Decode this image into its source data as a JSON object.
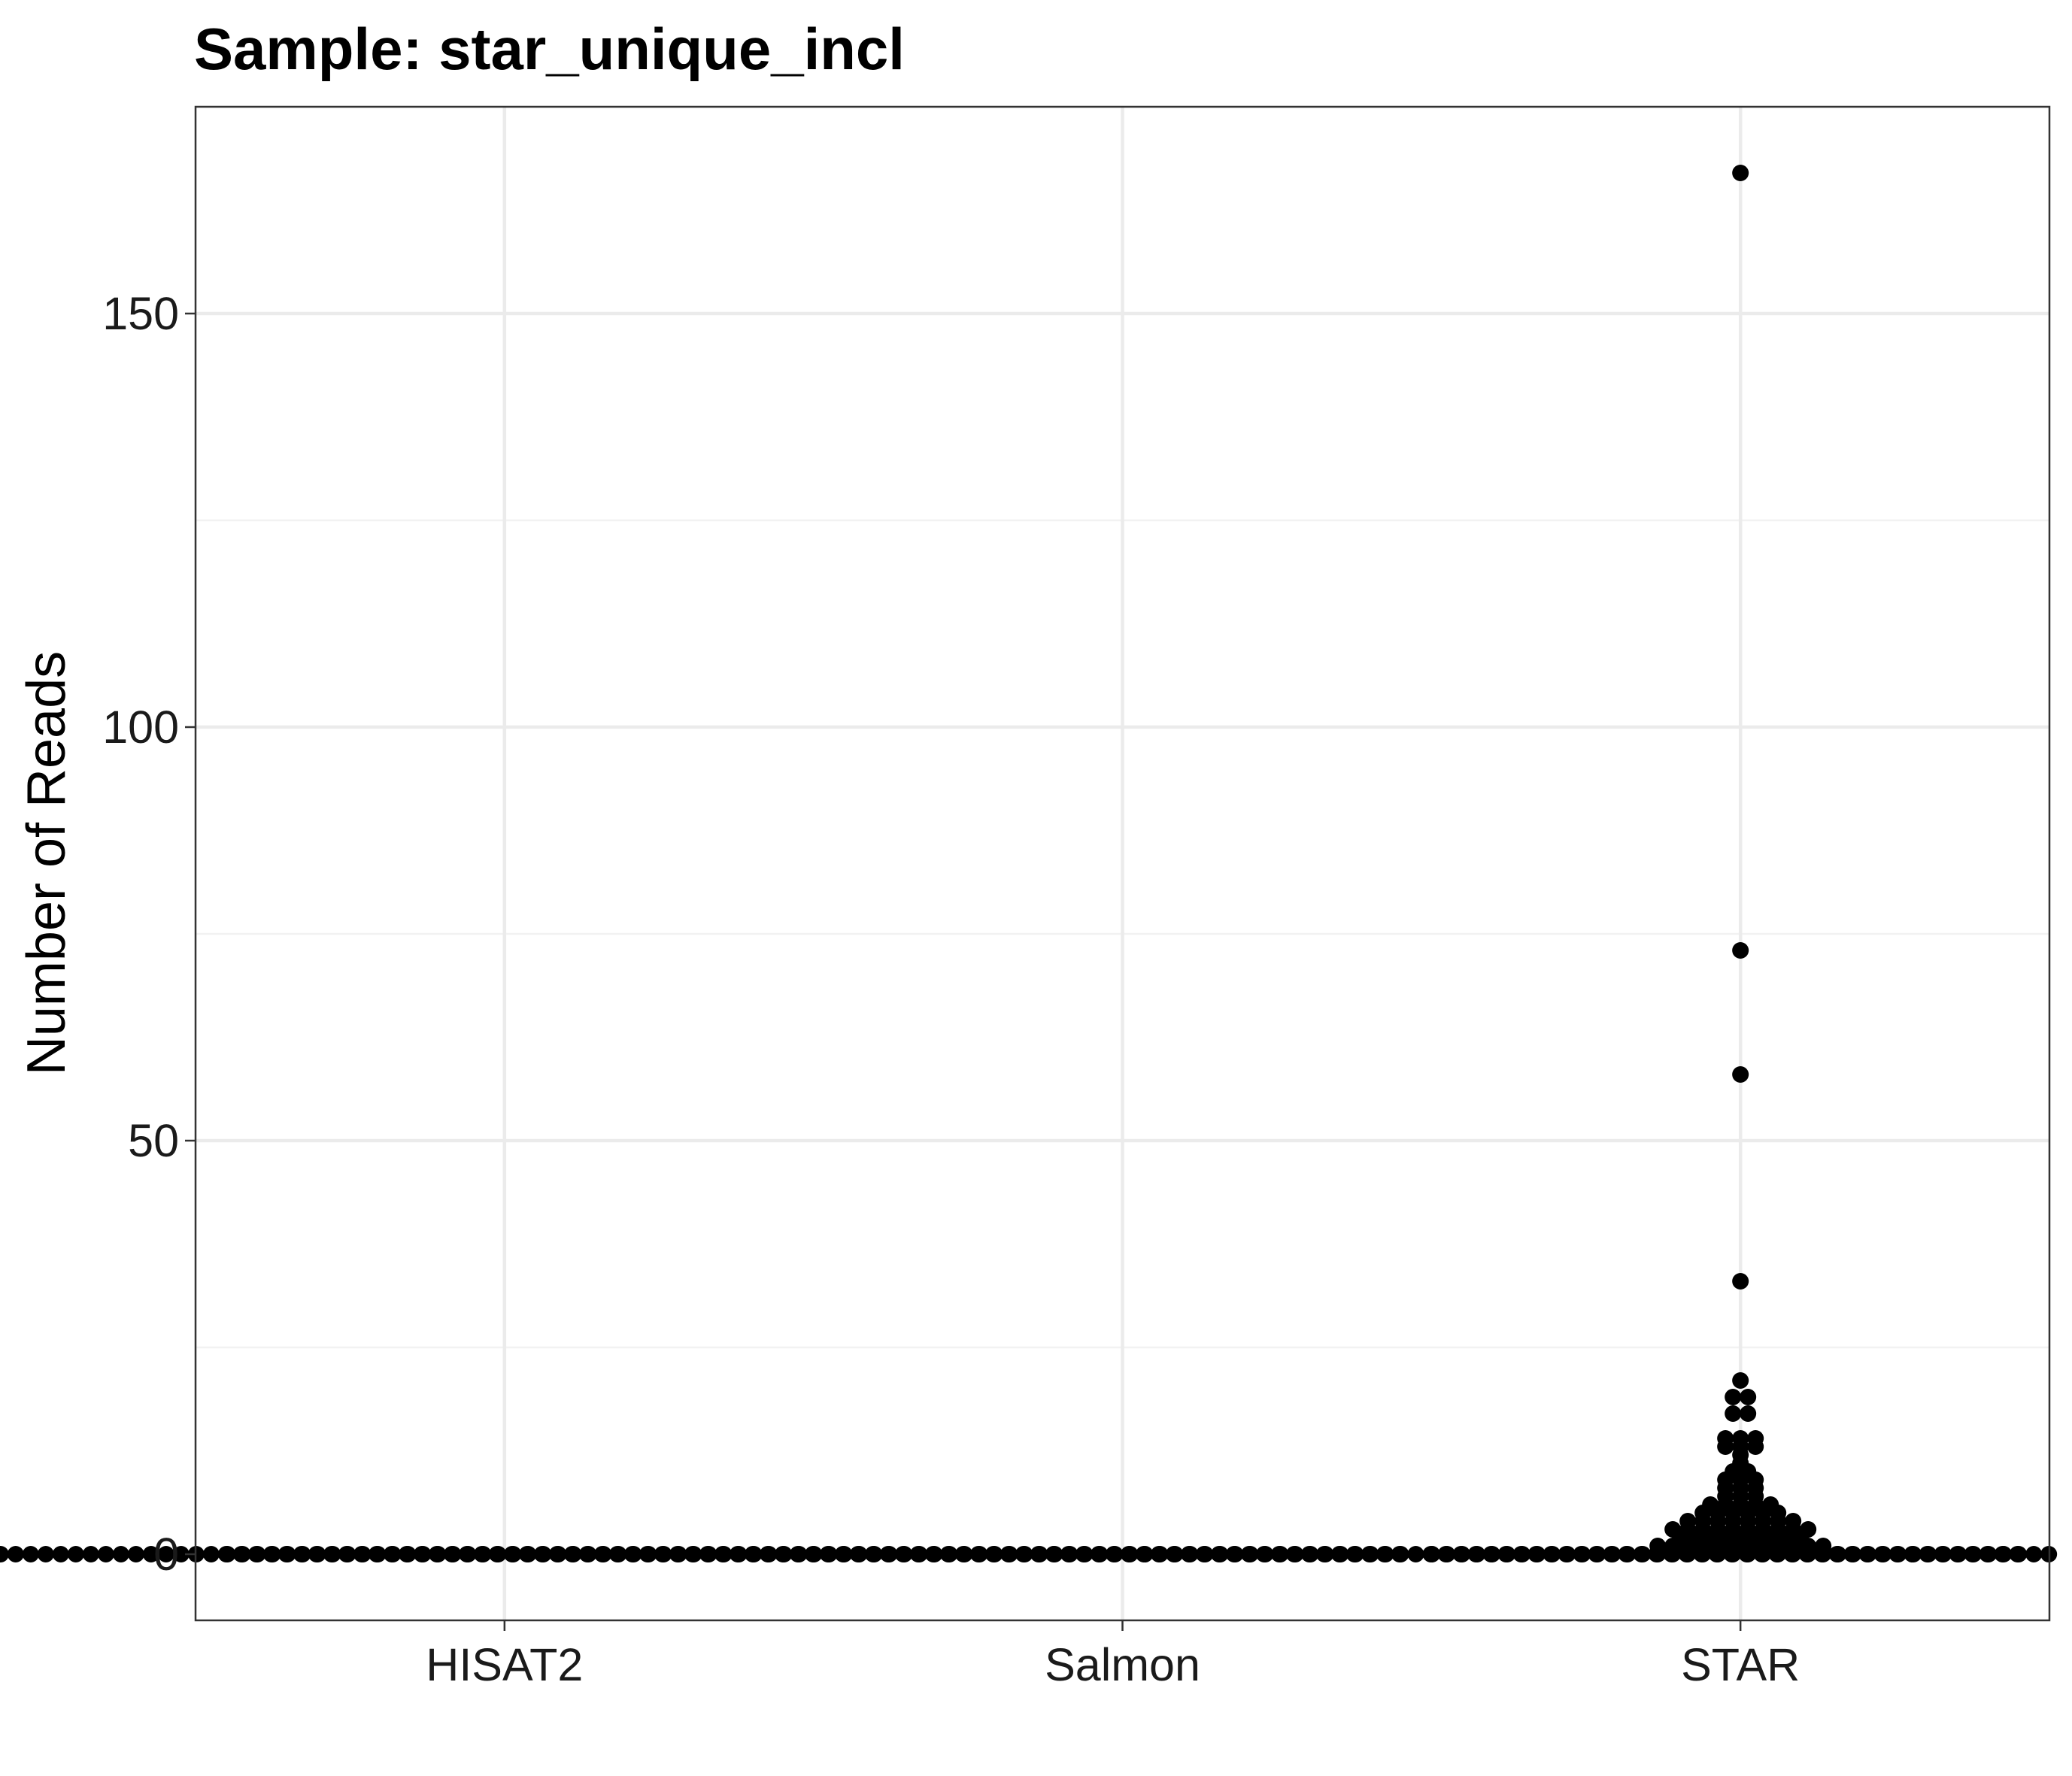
{
  "chart_data": {
    "type": "scatter",
    "subtype": "dotplot",
    "title": "Sample: star_unique_incl",
    "xlabel": "",
    "ylabel": "Number of Reads",
    "categories": [
      "HISAT2",
      "Salmon",
      "STAR"
    ],
    "ylim": [
      -8,
      175
    ],
    "yticks": [
      0,
      50,
      100,
      150
    ],
    "ytick_labels": [
      "0",
      "50",
      "100",
      "150"
    ],
    "grid": true,
    "theme": "bw",
    "point_color": "#000000",
    "series": [
      {
        "category": "HISAT2",
        "values": [
          0,
          0,
          0,
          0,
          0,
          0,
          0,
          0,
          0,
          0,
          0,
          0,
          0,
          0,
          0,
          0,
          0,
          0,
          0,
          0,
          0,
          0,
          0,
          0,
          0,
          0,
          0,
          0,
          0,
          0,
          0,
          0,
          0,
          0,
          0,
          0,
          0,
          0,
          0,
          0,
          0,
          0,
          0,
          0,
          0,
          0,
          0,
          0,
          0,
          0,
          0,
          0,
          0,
          0,
          0,
          0,
          0,
          0,
          0,
          0,
          0,
          0,
          0,
          0,
          0,
          0,
          0,
          0,
          0,
          0,
          0,
          0,
          0,
          0,
          0,
          0,
          0,
          0,
          0,
          0,
          0,
          0,
          0,
          0,
          0,
          0,
          0,
          0,
          0,
          0,
          0,
          0,
          0,
          0,
          0,
          0,
          0,
          0,
          0,
          0,
          0,
          0,
          0,
          0,
          0,
          0,
          0,
          0,
          0,
          0,
          0,
          0,
          0,
          0,
          0,
          0,
          0,
          0,
          0,
          0
        ]
      },
      {
        "category": "Salmon",
        "values": [
          0,
          0,
          0,
          0,
          0,
          0,
          0,
          0,
          0,
          0,
          0,
          0,
          0,
          0,
          0,
          0,
          0,
          0,
          0,
          0,
          0,
          0,
          0,
          0,
          0,
          0,
          0,
          0,
          0,
          0,
          0,
          0,
          0,
          0,
          0,
          0,
          0,
          0,
          0,
          0,
          0,
          0,
          0,
          0,
          0,
          0,
          0,
          0,
          0,
          0,
          0,
          0,
          0,
          0,
          0,
          0,
          0,
          0,
          0,
          0,
          0,
          0,
          0,
          0,
          0,
          0,
          0,
          0,
          0,
          0,
          0,
          0,
          0,
          0,
          0,
          0,
          0,
          0,
          0,
          0,
          0,
          0,
          0,
          0,
          0,
          0,
          0,
          0,
          0,
          0,
          0,
          0,
          0,
          0,
          0,
          0,
          0,
          0,
          0,
          0,
          0,
          0,
          0,
          0,
          0,
          0,
          0,
          0,
          0,
          0,
          0,
          0,
          0,
          0,
          0,
          0,
          0,
          0,
          0,
          0
        ]
      },
      {
        "category": "STAR",
        "values": [
          167,
          73,
          58,
          33,
          21,
          19,
          19,
          17,
          17,
          14,
          14,
          14,
          13,
          13,
          13,
          12,
          11,
          10,
          10,
          9,
          9,
          9,
          8,
          8,
          8,
          7,
          7,
          7,
          6,
          6,
          6,
          6,
          6,
          5,
          5,
          5,
          5,
          5,
          5,
          4,
          4,
          4,
          4,
          4,
          4,
          4,
          4,
          3,
          3,
          3,
          3,
          3,
          3,
          3,
          3,
          3,
          3,
          2,
          2,
          2,
          2,
          2,
          2,
          2,
          2,
          2,
          1,
          1,
          1,
          1,
          1,
          1,
          1,
          1,
          1,
          1,
          1,
          1,
          0,
          0,
          0,
          0,
          0,
          0,
          0,
          0,
          0,
          0,
          0,
          0,
          0,
          0,
          0,
          0,
          0,
          0,
          0,
          0,
          0,
          0,
          0,
          0,
          0,
          0,
          0,
          0,
          0,
          0,
          0,
          0,
          0,
          0,
          0,
          0,
          0,
          0,
          0,
          0,
          0,
          0
        ]
      }
    ]
  }
}
